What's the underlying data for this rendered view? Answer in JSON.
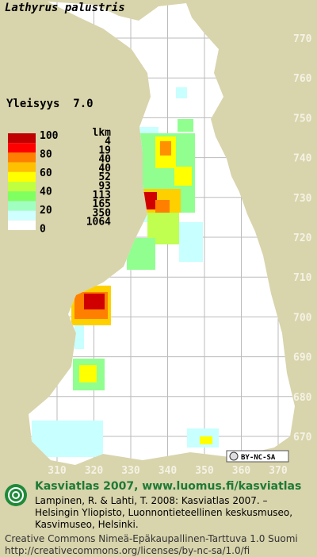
{
  "header": {
    "title": "Lathyrus palustris",
    "frequency": "Yleisyys  7.0"
  },
  "legend": {
    "scale": [
      100,
      80,
      60,
      40,
      20,
      0
    ],
    "count_header": "lkm",
    "counts": [
      4,
      19,
      40,
      40,
      52,
      93,
      113,
      165,
      350,
      1064
    ]
  },
  "map": {
    "y_labels": [
      770,
      760,
      750,
      740,
      730,
      720,
      710,
      700,
      690,
      680,
      670
    ],
    "x_labels": [
      310,
      320,
      330,
      340,
      350,
      360,
      370
    ],
    "license_badge": "BY-NC-SA"
  },
  "footer": {
    "atlas": "Kasviatlas 2007, www.luomus.fi/kasviatlas",
    "citation": [
      "Lampinen, R. & Lahti, T. 2008: Kasviatlas 2007. –",
      "Helsingin Yliopisto, Luonnontieteellinen keskusmuseo,",
      "Kasvimuseo, Helsinki."
    ],
    "license": "Creative Commons Nimeä-Epäkaupallinen-Tarttuva 1.0 Suomi",
    "url": "http://creativecommons.org/licenses/by-nc-sa/1.0/fi"
  }
}
